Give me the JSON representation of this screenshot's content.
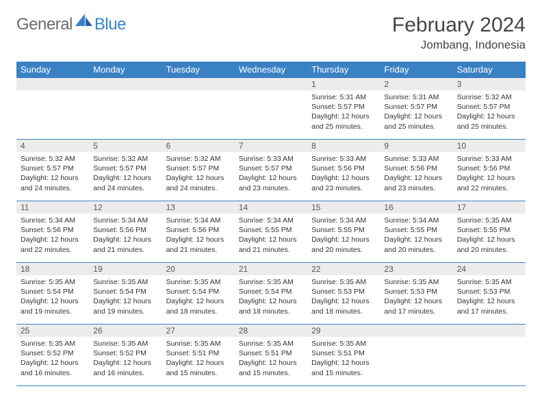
{
  "brand": {
    "general": "General",
    "blue": "Blue",
    "accent": "#3a81c4"
  },
  "title": "February 2024",
  "location": "Jombang, Indonesia",
  "dayHeaders": [
    "Sunday",
    "Monday",
    "Tuesday",
    "Wednesday",
    "Thursday",
    "Friday",
    "Saturday"
  ],
  "colors": {
    "headerBg": "#3a81c4",
    "headerText": "#ffffff",
    "dayNumBg": "#ececec",
    "gridLine": "#3a81c4",
    "bodyText": "#333333"
  },
  "fonts": {
    "title_pt": 30,
    "location_pt": 17,
    "th_pt": 13,
    "daynum_pt": 12,
    "body_pt": 10.5
  },
  "weeks": [
    [
      {
        "n": "",
        "lines": []
      },
      {
        "n": "",
        "lines": []
      },
      {
        "n": "",
        "lines": []
      },
      {
        "n": "",
        "lines": []
      },
      {
        "n": "1",
        "lines": [
          "Sunrise: 5:31 AM",
          "Sunset: 5:57 PM",
          "Daylight: 12 hours",
          "and 25 minutes."
        ]
      },
      {
        "n": "2",
        "lines": [
          "Sunrise: 5:31 AM",
          "Sunset: 5:57 PM",
          "Daylight: 12 hours",
          "and 25 minutes."
        ]
      },
      {
        "n": "3",
        "lines": [
          "Sunrise: 5:32 AM",
          "Sunset: 5:57 PM",
          "Daylight: 12 hours",
          "and 25 minutes."
        ]
      }
    ],
    [
      {
        "n": "4",
        "lines": [
          "Sunrise: 5:32 AM",
          "Sunset: 5:57 PM",
          "Daylight: 12 hours",
          "and 24 minutes."
        ]
      },
      {
        "n": "5",
        "lines": [
          "Sunrise: 5:32 AM",
          "Sunset: 5:57 PM",
          "Daylight: 12 hours",
          "and 24 minutes."
        ]
      },
      {
        "n": "6",
        "lines": [
          "Sunrise: 5:32 AM",
          "Sunset: 5:57 PM",
          "Daylight: 12 hours",
          "and 24 minutes."
        ]
      },
      {
        "n": "7",
        "lines": [
          "Sunrise: 5:33 AM",
          "Sunset: 5:57 PM",
          "Daylight: 12 hours",
          "and 23 minutes."
        ]
      },
      {
        "n": "8",
        "lines": [
          "Sunrise: 5:33 AM",
          "Sunset: 5:56 PM",
          "Daylight: 12 hours",
          "and 23 minutes."
        ]
      },
      {
        "n": "9",
        "lines": [
          "Sunrise: 5:33 AM",
          "Sunset: 5:56 PM",
          "Daylight: 12 hours",
          "and 23 minutes."
        ]
      },
      {
        "n": "10",
        "lines": [
          "Sunrise: 5:33 AM",
          "Sunset: 5:56 PM",
          "Daylight: 12 hours",
          "and 22 minutes."
        ]
      }
    ],
    [
      {
        "n": "11",
        "lines": [
          "Sunrise: 5:34 AM",
          "Sunset: 5:56 PM",
          "Daylight: 12 hours",
          "and 22 minutes."
        ]
      },
      {
        "n": "12",
        "lines": [
          "Sunrise: 5:34 AM",
          "Sunset: 5:56 PM",
          "Daylight: 12 hours",
          "and 21 minutes."
        ]
      },
      {
        "n": "13",
        "lines": [
          "Sunrise: 5:34 AM",
          "Sunset: 5:56 PM",
          "Daylight: 12 hours",
          "and 21 minutes."
        ]
      },
      {
        "n": "14",
        "lines": [
          "Sunrise: 5:34 AM",
          "Sunset: 5:55 PM",
          "Daylight: 12 hours",
          "and 21 minutes."
        ]
      },
      {
        "n": "15",
        "lines": [
          "Sunrise: 5:34 AM",
          "Sunset: 5:55 PM",
          "Daylight: 12 hours",
          "and 20 minutes."
        ]
      },
      {
        "n": "16",
        "lines": [
          "Sunrise: 5:34 AM",
          "Sunset: 5:55 PM",
          "Daylight: 12 hours",
          "and 20 minutes."
        ]
      },
      {
        "n": "17",
        "lines": [
          "Sunrise: 5:35 AM",
          "Sunset: 5:55 PM",
          "Daylight: 12 hours",
          "and 20 minutes."
        ]
      }
    ],
    [
      {
        "n": "18",
        "lines": [
          "Sunrise: 5:35 AM",
          "Sunset: 5:54 PM",
          "Daylight: 12 hours",
          "and 19 minutes."
        ]
      },
      {
        "n": "19",
        "lines": [
          "Sunrise: 5:35 AM",
          "Sunset: 5:54 PM",
          "Daylight: 12 hours",
          "and 19 minutes."
        ]
      },
      {
        "n": "20",
        "lines": [
          "Sunrise: 5:35 AM",
          "Sunset: 5:54 PM",
          "Daylight: 12 hours",
          "and 18 minutes."
        ]
      },
      {
        "n": "21",
        "lines": [
          "Sunrise: 5:35 AM",
          "Sunset: 5:54 PM",
          "Daylight: 12 hours",
          "and 18 minutes."
        ]
      },
      {
        "n": "22",
        "lines": [
          "Sunrise: 5:35 AM",
          "Sunset: 5:53 PM",
          "Daylight: 12 hours",
          "and 18 minutes."
        ]
      },
      {
        "n": "23",
        "lines": [
          "Sunrise: 5:35 AM",
          "Sunset: 5:53 PM",
          "Daylight: 12 hours",
          "and 17 minutes."
        ]
      },
      {
        "n": "24",
        "lines": [
          "Sunrise: 5:35 AM",
          "Sunset: 5:53 PM",
          "Daylight: 12 hours",
          "and 17 minutes."
        ]
      }
    ],
    [
      {
        "n": "25",
        "lines": [
          "Sunrise: 5:35 AM",
          "Sunset: 5:52 PM",
          "Daylight: 12 hours",
          "and 16 minutes."
        ]
      },
      {
        "n": "26",
        "lines": [
          "Sunrise: 5:35 AM",
          "Sunset: 5:52 PM",
          "Daylight: 12 hours",
          "and 16 minutes."
        ]
      },
      {
        "n": "27",
        "lines": [
          "Sunrise: 5:35 AM",
          "Sunset: 5:51 PM",
          "Daylight: 12 hours",
          "and 15 minutes."
        ]
      },
      {
        "n": "28",
        "lines": [
          "Sunrise: 5:35 AM",
          "Sunset: 5:51 PM",
          "Daylight: 12 hours",
          "and 15 minutes."
        ]
      },
      {
        "n": "29",
        "lines": [
          "Sunrise: 5:35 AM",
          "Sunset: 5:51 PM",
          "Daylight: 12 hours",
          "and 15 minutes."
        ]
      },
      {
        "n": "",
        "lines": []
      },
      {
        "n": "",
        "lines": []
      }
    ]
  ]
}
